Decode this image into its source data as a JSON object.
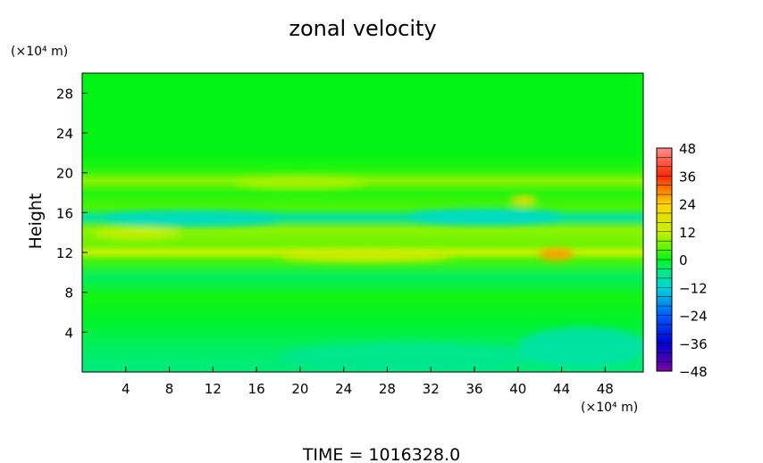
{
  "chart_data": {
    "type": "heatmap",
    "title": "zonal velocity",
    "xlabel": "",
    "ylabel": "Height",
    "x_unit": "(×10⁴ m)",
    "y_unit": "(×10⁴ m)",
    "xlim": [
      0,
      51.5
    ],
    "ylim": [
      0,
      30
    ],
    "x_ticks": [
      4,
      8,
      12,
      16,
      20,
      24,
      28,
      32,
      36,
      40,
      44,
      48
    ],
    "y_ticks": [
      4,
      8,
      12,
      16,
      20,
      24,
      28
    ],
    "colorbar": {
      "min": -48,
      "max": 48,
      "ticks": [
        48,
        36,
        24,
        12,
        0,
        -12,
        -24,
        -36,
        -48
      ]
    },
    "field_description_bands": [
      {
        "y": 0.5,
        "value": -4
      },
      {
        "y": 2.5,
        "value": -3
      },
      {
        "y": 5,
        "value": -1
      },
      {
        "y": 7.5,
        "value": 1
      },
      {
        "y": 9.5,
        "value": -3
      },
      {
        "y": 11.2,
        "value": 4
      },
      {
        "y": 12,
        "value": 12
      },
      {
        "y": 12.8,
        "value": 6
      },
      {
        "y": 14.3,
        "value": 8
      },
      {
        "y": 15.5,
        "value": -8
      },
      {
        "y": 16.5,
        "value": 4
      },
      {
        "y": 18,
        "value": 2
      },
      {
        "y": 19.2,
        "value": 8
      },
      {
        "y": 20.3,
        "value": 2
      },
      {
        "y": 22,
        "value": 0
      },
      {
        "y": 26,
        "value": 0
      },
      {
        "y": 30,
        "value": 0
      }
    ],
    "field_description_blobs": [
      {
        "x": 43.5,
        "y": 11.8,
        "rx": 1.6,
        "ry": 0.6,
        "value": 28
      },
      {
        "x": 40.5,
        "y": 17.2,
        "rx": 1.2,
        "ry": 0.5,
        "value": 20
      },
      {
        "x": 20,
        "y": 19,
        "rx": 6,
        "ry": 0.6,
        "value": 10
      },
      {
        "x": 26,
        "y": 11.6,
        "rx": 8,
        "ry": 0.6,
        "value": 14
      },
      {
        "x": 37,
        "y": 15.6,
        "rx": 7,
        "ry": 0.8,
        "value": -11
      },
      {
        "x": 10,
        "y": 15.4,
        "rx": 8,
        "ry": 0.8,
        "value": -10
      },
      {
        "x": 5,
        "y": 13.9,
        "rx": 4,
        "ry": 0.6,
        "value": 12
      },
      {
        "x": 30,
        "y": 1.5,
        "rx": 12,
        "ry": 1.5,
        "value": -6
      },
      {
        "x": 46,
        "y": 2.5,
        "rx": 6,
        "ry": 2,
        "value": -8
      }
    ]
  },
  "footer": {
    "time_label": "TIME = 1016328.0"
  }
}
